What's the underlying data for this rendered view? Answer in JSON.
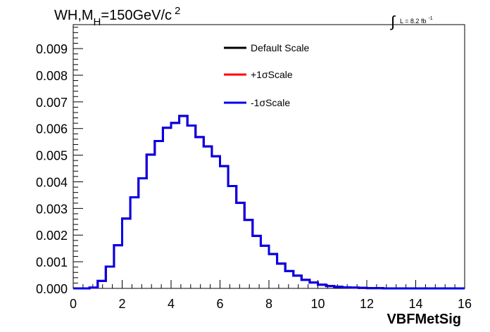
{
  "chart_data": {
    "type": "line",
    "title_parts": {
      "main": "WH,M",
      "subscript": "H",
      "rest": "=150GeV/c",
      "superscript": "2"
    },
    "lumi_label": {
      "integral_symbol": "∫",
      "text": "L = 8.2 fb",
      "superscript": "-1"
    },
    "xlabel": "VBFMetSig",
    "ylabel": "",
    "xlim": [
      0,
      16
    ],
    "ylim": [
      0,
      0.0099
    ],
    "x_ticks": [
      "0",
      "2",
      "4",
      "6",
      "8",
      "10",
      "12",
      "14",
      "16"
    ],
    "y_ticks": [
      "0.000",
      "0.001",
      "0.002",
      "0.003",
      "0.004",
      "0.005",
      "0.006",
      "0.007",
      "0.008",
      "0.009"
    ],
    "legend_position": "top-center",
    "bin_edges": [
      0,
      0.333,
      0.667,
      1.0,
      1.333,
      1.667,
      2.0,
      2.333,
      2.667,
      3.0,
      3.333,
      3.667,
      4.0,
      4.333,
      4.667,
      5.0,
      5.333,
      5.667,
      6.0,
      6.333,
      6.667,
      7.0,
      7.333,
      7.667,
      8.0,
      8.333,
      8.667,
      9.0,
      9.333,
      9.667,
      10.0,
      10.333,
      10.667,
      11.0,
      11.333,
      11.667,
      12.0,
      12.333,
      12.667,
      13.0,
      13.333,
      13.667,
      14.0,
      14.333,
      14.667,
      15.0,
      15.333,
      15.667,
      16.0
    ],
    "series": [
      {
        "name": "Default Scale",
        "color": "#000000",
        "values": [
          0.0,
          0.0,
          3e-05,
          0.00028,
          0.00082,
          0.00162,
          0.00262,
          0.00342,
          0.00413,
          0.00502,
          0.00553,
          0.00603,
          0.00621,
          0.00647,
          0.00611,
          0.00568,
          0.00533,
          0.00496,
          0.00459,
          0.00384,
          0.00321,
          0.00257,
          0.00197,
          0.0016,
          0.00129,
          0.00093,
          0.00065,
          0.00048,
          0.00032,
          0.00022,
          0.00014,
          9e-05,
          6e-05,
          4e-05,
          3e-05,
          2e-05,
          1e-05,
          1e-05,
          0.0,
          0.0,
          0.0,
          0.0,
          0.0,
          0.0,
          0.0,
          0.0,
          0.0,
          0.0
        ]
      },
      {
        "name": "+1σScale",
        "color": "#ff0000",
        "values": [
          0.0,
          0.0,
          3e-05,
          0.00028,
          0.00082,
          0.00162,
          0.00262,
          0.00342,
          0.00413,
          0.00502,
          0.00553,
          0.00603,
          0.00621,
          0.00647,
          0.00611,
          0.00568,
          0.00533,
          0.00496,
          0.00459,
          0.00384,
          0.00321,
          0.00257,
          0.00197,
          0.0016,
          0.00129,
          0.00093,
          0.00065,
          0.00048,
          0.00032,
          0.00022,
          0.00014,
          9e-05,
          6e-05,
          4e-05,
          3e-05,
          2e-05,
          1e-05,
          1e-05,
          0.0,
          0.0,
          0.0,
          0.0,
          0.0,
          0.0,
          0.0,
          0.0,
          0.0,
          0.0
        ]
      },
      {
        "name": "-1σScale",
        "color": "#0000ee",
        "values": [
          0.0,
          0.0,
          3e-05,
          0.00028,
          0.00082,
          0.00162,
          0.00262,
          0.00342,
          0.00413,
          0.00502,
          0.00553,
          0.00603,
          0.00621,
          0.00647,
          0.00611,
          0.00568,
          0.00533,
          0.00496,
          0.00459,
          0.00384,
          0.00321,
          0.00257,
          0.00197,
          0.0016,
          0.00129,
          0.00093,
          0.00065,
          0.00048,
          0.00032,
          0.00022,
          0.00014,
          9e-05,
          6e-05,
          4e-05,
          3e-05,
          2e-05,
          1e-05,
          1e-05,
          0.0,
          0.0,
          0.0,
          0.0,
          0.0,
          0.0,
          0.0,
          0.0,
          0.0,
          0.0
        ]
      }
    ]
  }
}
